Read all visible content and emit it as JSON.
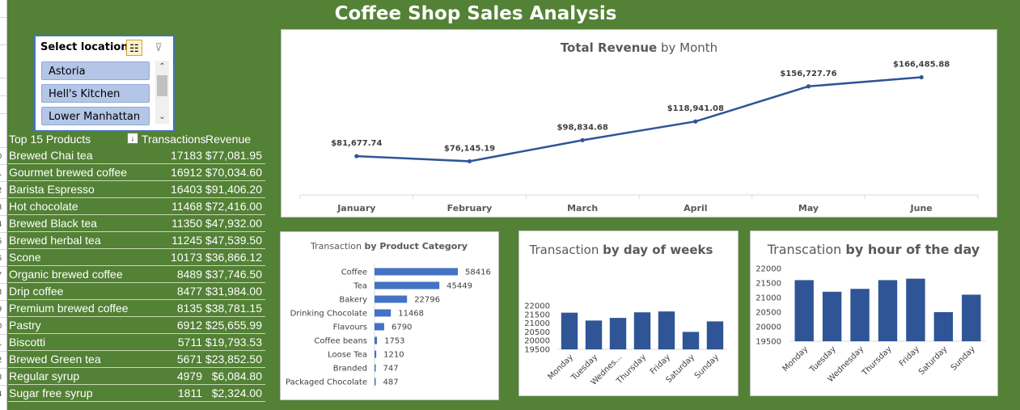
{
  "page": {
    "title": "Coffee Shop Sales Analysis"
  },
  "row_numbers": [
    "0",
    "1",
    "2",
    "3",
    "4",
    "5",
    "6",
    "7",
    "8",
    "9",
    "0",
    "1",
    "2",
    "3",
    "4"
  ],
  "slicer": {
    "header": "Select location",
    "items": [
      "Astoria",
      "Hell's Kitchen",
      "Lower Manhattan"
    ],
    "icons": [
      "multi-select-icon",
      "clear-filter-icon"
    ]
  },
  "table": {
    "headers": [
      "Top 15 Products",
      "Transactions",
      "Revenue"
    ],
    "rows": [
      [
        "Brewed Chai tea",
        "17183",
        "$77,081.95"
      ],
      [
        "Gourmet brewed coffee",
        "16912",
        "$70,034.60"
      ],
      [
        "Barista Espresso",
        "16403",
        "$91,406.20"
      ],
      [
        "Hot chocolate",
        "11468",
        "$72,416.00"
      ],
      [
        "Brewed Black tea",
        "11350",
        "$47,932.00"
      ],
      [
        "Brewed herbal tea",
        "11245",
        "$47,539.50"
      ],
      [
        "Scone",
        "10173",
        "$36,866.12"
      ],
      [
        "Organic brewed coffee",
        "8489",
        "$37,746.50"
      ],
      [
        "Drip coffee",
        "8477",
        "$31,984.00"
      ],
      [
        "Premium brewed coffee",
        "8135",
        "$38,781.15"
      ],
      [
        "Pastry",
        "6912",
        "$25,655.99"
      ],
      [
        "Biscotti",
        "5711",
        "$19,793.53"
      ],
      [
        "Brewed Green tea",
        "5671",
        "$23,852.50"
      ],
      [
        "Regular syrup",
        "4979",
        "$6,084.80"
      ],
      [
        "Sugar free syrup",
        "1811",
        "$2,324.00"
      ]
    ]
  },
  "chart_data": [
    {
      "type": "line",
      "title_bold": "Total Revenue",
      "title_rest": " by Month",
      "categories": [
        "January",
        "February",
        "March",
        "April",
        "May",
        "June"
      ],
      "values": [
        81677.74,
        76145.19,
        98834.68,
        118941.08,
        156727.76,
        166485.88
      ],
      "labels": [
        "$81,677.74",
        "$76,145.19",
        "$98,834.68",
        "$118,941.08",
        "$156,727.76",
        "$166,485.88"
      ],
      "color": "#2f5597",
      "grid": false
    },
    {
      "type": "bar",
      "orientation": "horizontal",
      "title_rest": "Transaction ",
      "title_bold": "by Product Category",
      "categories": [
        "Coffee",
        "Tea",
        "Bakery",
        "Drinking Chocolate",
        "Flavours",
        "Coffee beans",
        "Loose Tea",
        "Branded",
        "Packaged Chocolate"
      ],
      "values": [
        58416,
        45449,
        22796,
        11468,
        6790,
        1753,
        1210,
        747,
        487
      ],
      "color": "#4472c4"
    },
    {
      "type": "bar",
      "title_rest": "Transaction ",
      "title_bold": "by day of weeks",
      "categories": [
        "Monday",
        "Tuesday",
        "Wednes...",
        "Thursday",
        "Friday",
        "Saturday",
        "Sunday"
      ],
      "values": [
        21600,
        21150,
        21300,
        21620,
        21670,
        20500,
        21100
      ],
      "yticks": [
        "22000",
        "21500",
        "21000",
        "20500",
        "20000",
        "19500"
      ],
      "ylim": [
        19500,
        22000
      ],
      "color": "#2f5597"
    },
    {
      "type": "bar",
      "title_rest": "Transcation ",
      "title_bold": "by hour of the day",
      "categories": [
        "Monday",
        "Tuesday",
        "Wednesday",
        "Thursday",
        "Friday",
        "Saturday",
        "Sunday"
      ],
      "values": [
        21600,
        21200,
        21300,
        21600,
        21650,
        20500,
        21100
      ],
      "yticks": [
        "22000",
        "21500",
        "21000",
        "20500",
        "20000",
        "19500"
      ],
      "ylim": [
        19500,
        22000
      ],
      "color": "#2f5597"
    }
  ]
}
